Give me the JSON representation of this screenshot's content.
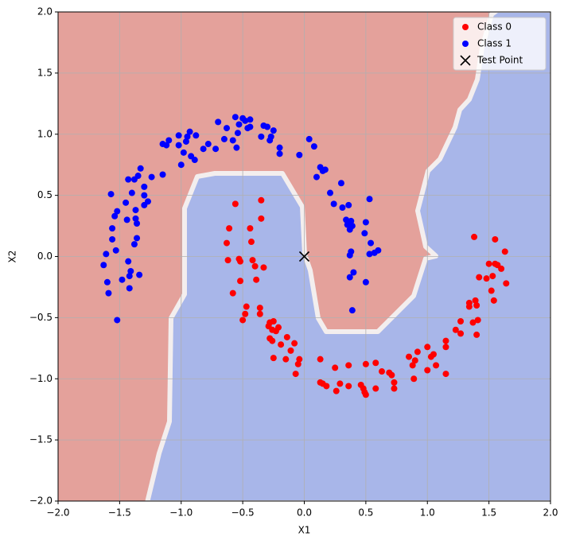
{
  "chart_data": {
    "type": "scatter",
    "x_label": "X1",
    "y_label": "X2",
    "xlim": [
      -2,
      2
    ],
    "ylim": [
      -2,
      2
    ],
    "xticks": [
      {
        "value": -2,
        "label": "−2.0"
      },
      {
        "value": -1.5,
        "label": "−1.5"
      },
      {
        "value": -1,
        "label": "−1.0"
      },
      {
        "value": -0.5,
        "label": "−0.5"
      },
      {
        "value": 0,
        "label": "0.0"
      },
      {
        "value": 0.5,
        "label": "0.5"
      },
      {
        "value": 1,
        "label": "1.0"
      },
      {
        "value": 1.5,
        "label": "1.5"
      },
      {
        "value": 2,
        "label": "2.0"
      }
    ],
    "yticks": [
      {
        "value": -2,
        "label": "−2.0"
      },
      {
        "value": -1.5,
        "label": "−1.5"
      },
      {
        "value": -1,
        "label": "−1.0"
      },
      {
        "value": -0.5,
        "label": "−0.5"
      },
      {
        "value": 0,
        "label": "0.0"
      },
      {
        "value": 0.5,
        "label": "0.5"
      },
      {
        "value": 1,
        "label": "1.0"
      },
      {
        "value": 1.5,
        "label": "1.5"
      },
      {
        "value": 2,
        "label": "2.0"
      }
    ],
    "grid": true,
    "legend": "upper right",
    "series": [
      {
        "name": "Class 0",
        "color": "#ff0000",
        "marker": "o",
        "x": [
          -0.63,
          -0.62,
          -0.61,
          -0.58,
          -0.56,
          -0.53,
          -0.52,
          -0.52,
          -0.5,
          -0.48,
          -0.47,
          -0.44,
          -0.43,
          -0.42,
          -0.4,
          -0.39,
          -0.36,
          -0.36,
          -0.35,
          -0.35,
          -0.33,
          -0.29,
          -0.28,
          -0.28,
          -0.26,
          -0.26,
          -0.25,
          -0.25,
          -0.23,
          -0.21,
          -0.19,
          -0.15,
          -0.14,
          -0.11,
          -0.08,
          -0.07,
          -0.05,
          -0.04,
          0.13,
          0.13,
          0.15,
          0.18,
          0.25,
          0.26,
          0.29,
          0.36,
          0.36,
          0.46,
          0.48,
          0.5,
          0.5,
          0.49,
          0.58,
          0.58,
          0.63,
          0.69,
          0.71,
          0.73,
          0.73,
          0.85,
          0.88,
          0.89,
          0.9,
          0.92,
          1.0,
          1.0,
          1.03,
          1.05,
          1.07,
          1.15,
          1.15,
          1.15,
          1.23,
          1.27,
          1.27,
          1.34,
          1.34,
          1.37,
          1.38,
          1.39,
          1.4,
          1.4,
          1.41,
          1.42,
          1.48,
          1.5,
          1.52,
          1.53,
          1.54,
          1.55,
          1.55,
          1.57,
          1.6,
          1.63,
          1.64
        ],
        "values": [
          0.11,
          -0.03,
          0.23,
          -0.3,
          0.43,
          -0.02,
          -0.04,
          -0.2,
          -0.52,
          -0.47,
          -0.41,
          0.23,
          0.12,
          -0.03,
          -0.08,
          -0.19,
          -0.42,
          -0.47,
          0.46,
          0.31,
          -0.09,
          -0.57,
          -0.54,
          -0.67,
          -0.6,
          -0.69,
          -0.53,
          -0.83,
          -0.61,
          -0.58,
          -0.72,
          -0.84,
          -0.66,
          -0.77,
          -0.71,
          -0.96,
          -0.88,
          -0.84,
          -0.84,
          -1.03,
          -1.04,
          -1.06,
          -0.91,
          -1.1,
          -1.04,
          -0.89,
          -1.06,
          -1.05,
          -1.08,
          -0.88,
          -1.13,
          -1.11,
          -1.08,
          -0.87,
          -0.94,
          -0.95,
          -0.97,
          -1.03,
          -1.08,
          -0.82,
          -0.89,
          -1.0,
          -0.85,
          -0.78,
          -0.74,
          -0.93,
          -0.82,
          -0.8,
          -0.89,
          -0.74,
          -0.69,
          -0.96,
          -0.6,
          -0.53,
          -0.63,
          -0.38,
          -0.41,
          -0.54,
          0.16,
          -0.36,
          -0.64,
          -0.4,
          -0.52,
          -0.17,
          -0.18,
          -0.06,
          -0.28,
          -0.16,
          -0.36,
          0.14,
          -0.06,
          -0.07,
          -0.1,
          0.04,
          -0.22
        ]
      },
      {
        "name": "Class 1",
        "color": "#0000ff",
        "marker": "o",
        "x": [
          -1.63,
          -1.61,
          -1.6,
          -1.59,
          -1.56,
          -1.54,
          -1.52,
          -1.56,
          -1.53,
          -1.57,
          -1.52,
          -1.48,
          -1.45,
          -1.43,
          -1.42,
          -1.42,
          -1.41,
          -1.44,
          -1.43,
          -1.4,
          -1.38,
          -1.38,
          -1.37,
          -1.37,
          -1.36,
          -1.36,
          -1.35,
          -1.34,
          -1.33,
          -1.3,
          -1.3,
          -1.3,
          -1.27,
          -1.24,
          -1.15,
          -1.15,
          -1.12,
          -1.1,
          -1.02,
          -1.02,
          -1.0,
          -0.98,
          -0.96,
          -0.95,
          -0.93,
          -0.92,
          -0.89,
          -0.88,
          -0.82,
          -0.78,
          -0.72,
          -0.7,
          -0.65,
          -0.63,
          -0.58,
          -0.56,
          -0.55,
          -0.54,
          -0.53,
          -0.5,
          -0.48,
          -0.46,
          -0.44,
          -0.44,
          -0.35,
          -0.33,
          -0.3,
          -0.28,
          -0.27,
          -0.25,
          -0.2,
          -0.2,
          -0.04,
          0.04,
          0.08,
          0.1,
          0.13,
          0.15,
          0.17,
          0.21,
          0.24,
          0.3,
          0.31,
          0.34,
          0.36,
          0.35,
          0.38,
          0.37,
          0.39,
          0.38,
          0.37,
          0.37,
          0.4,
          0.39,
          0.49,
          0.5,
          0.5,
          0.53,
          0.54,
          0.53,
          0.57,
          0.6
        ],
        "values": [
          -0.07,
          0.02,
          -0.21,
          -0.3,
          0.14,
          0.33,
          0.37,
          0.23,
          0.05,
          0.51,
          -0.52,
          -0.19,
          0.44,
          -0.04,
          -0.16,
          -0.26,
          -0.12,
          0.3,
          0.63,
          0.52,
          0.63,
          0.1,
          0.38,
          0.31,
          0.27,
          0.15,
          0.66,
          -0.15,
          0.72,
          0.42,
          0.5,
          0.57,
          0.45,
          0.65,
          0.67,
          0.92,
          0.91,
          0.95,
          0.99,
          0.91,
          0.75,
          0.85,
          0.94,
          0.98,
          1.02,
          0.82,
          0.79,
          0.99,
          0.88,
          0.92,
          0.88,
          1.1,
          0.96,
          1.05,
          0.95,
          1.14,
          0.89,
          1.01,
          1.08,
          1.13,
          1.11,
          1.05,
          1.06,
          1.12,
          0.98,
          1.07,
          1.06,
          0.95,
          0.98,
          1.03,
          0.89,
          0.84,
          0.83,
          0.96,
          0.9,
          0.65,
          0.73,
          0.7,
          0.71,
          0.52,
          0.43,
          0.6,
          0.4,
          0.3,
          0.42,
          0.26,
          0.29,
          0.22,
          0.25,
          0.04,
          0.01,
          -0.17,
          -0.13,
          -0.44,
          0.19,
          0.28,
          -0.21,
          0.47,
          0.11,
          0.02,
          0.03,
          0.05
        ]
      },
      {
        "name": "Test Point",
        "color": "#000000",
        "marker": "x",
        "x": [
          0
        ],
        "values": [
          0
        ]
      }
    ]
  }
}
